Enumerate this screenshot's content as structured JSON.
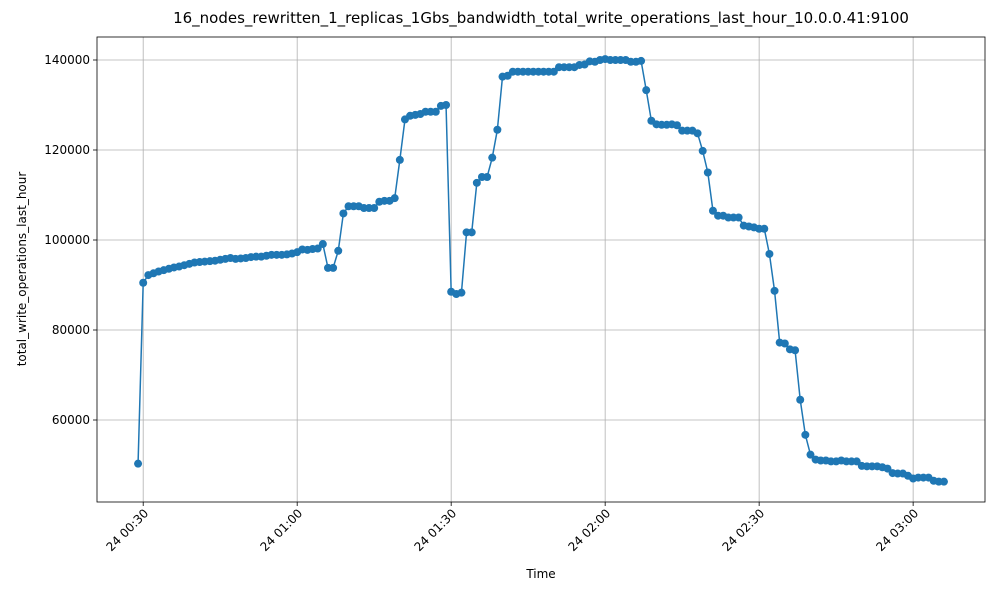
{
  "chart_data": {
    "type": "line",
    "title": "16_nodes_rewritten_1_replicas_1Gbs_bandwidth_total_write_operations_last_hour_10.0.0.41:9100",
    "xlabel": "Time",
    "ylabel": "total_write_operations_last_hour",
    "color": "#1f77b4",
    "grid": true,
    "marker": "o",
    "xlim": [
      "24 00:21",
      "24 03:14"
    ],
    "xticks": [
      "24 00:30",
      "24 01:00",
      "24 01:30",
      "24 02:00",
      "24 02:30",
      "24 03:00"
    ],
    "ylim": [
      41778,
      145111
    ],
    "yticks": [
      60000,
      80000,
      100000,
      120000,
      140000
    ],
    "x": [
      "24 00:29",
      "24 00:30",
      "24 00:31",
      "24 00:32",
      "24 00:33",
      "24 00:34",
      "24 00:35",
      "24 00:36",
      "24 00:37",
      "24 00:38",
      "24 00:39",
      "24 00:40",
      "24 00:41",
      "24 00:42",
      "24 00:43",
      "24 00:44",
      "24 00:45",
      "24 00:46",
      "24 00:47",
      "24 00:48",
      "24 00:49",
      "24 00:50",
      "24 00:51",
      "24 00:52",
      "24 00:53",
      "24 00:54",
      "24 00:55",
      "24 00:56",
      "24 00:57",
      "24 00:58",
      "24 00:59",
      "24 01:00",
      "24 01:01",
      "24 01:02",
      "24 01:03",
      "24 01:04",
      "24 01:05",
      "24 01:06",
      "24 01:07",
      "24 01:08",
      "24 01:09",
      "24 01:10",
      "24 01:11",
      "24 01:12",
      "24 01:13",
      "24 01:14",
      "24 01:15",
      "24 01:16",
      "24 01:17",
      "24 01:18",
      "24 01:19",
      "24 01:20",
      "24 01:21",
      "24 01:22",
      "24 01:23",
      "24 01:24",
      "24 01:25",
      "24 01:26",
      "24 01:27",
      "24 01:28",
      "24 01:29",
      "24 01:30",
      "24 01:31",
      "24 01:32",
      "24 01:33",
      "24 01:34",
      "24 01:35",
      "24 01:36",
      "24 01:37",
      "24 01:38",
      "24 01:39",
      "24 01:40",
      "24 01:41",
      "24 01:42",
      "24 01:43",
      "24 01:44",
      "24 01:45",
      "24 01:46",
      "24 01:47",
      "24 01:48",
      "24 01:49",
      "24 01:50",
      "24 01:51",
      "24 01:52",
      "24 01:53",
      "24 01:54",
      "24 01:55",
      "24 01:56",
      "24 01:57",
      "24 01:58",
      "24 01:59",
      "24 02:00",
      "24 02:01",
      "24 02:02",
      "24 02:03",
      "24 02:04",
      "24 02:05",
      "24 02:06",
      "24 02:07",
      "24 02:08",
      "24 02:09",
      "24 02:10",
      "24 02:11",
      "24 02:12",
      "24 02:13",
      "24 02:14",
      "24 02:15",
      "24 02:16",
      "24 02:17",
      "24 02:18",
      "24 02:19",
      "24 02:20",
      "24 02:21",
      "24 02:22",
      "24 02:23",
      "24 02:24",
      "24 02:25",
      "24 02:26",
      "24 02:27",
      "24 02:28",
      "24 02:29",
      "24 02:30",
      "24 02:31",
      "24 02:32",
      "24 02:33",
      "24 02:34",
      "24 02:35",
      "24 02:36",
      "24 02:37",
      "24 02:38",
      "24 02:39",
      "24 02:40",
      "24 02:41",
      "24 02:42",
      "24 02:43",
      "24 02:44",
      "24 02:45",
      "24 02:46",
      "24 02:47",
      "24 02:48",
      "24 02:49",
      "24 02:50",
      "24 02:51",
      "24 02:52",
      "24 02:53",
      "24 02:54",
      "24 02:55",
      "24 02:56",
      "24 02:57",
      "24 02:58",
      "24 02:59",
      "24 03:00",
      "24 03:01",
      "24 03:02",
      "24 03:03",
      "24 03:04",
      "24 03:05",
      "24 03:06"
    ],
    "values": [
      50300,
      90500,
      92200,
      92600,
      93000,
      93300,
      93600,
      93900,
      94100,
      94400,
      94700,
      95000,
      95100,
      95200,
      95300,
      95400,
      95600,
      95800,
      96000,
      95800,
      95900,
      96000,
      96200,
      96300,
      96300,
      96500,
      96700,
      96700,
      96700,
      96800,
      97000,
      97300,
      97900,
      97800,
      98000,
      98100,
      99100,
      93800,
      93800,
      97600,
      105900,
      107500,
      107500,
      107500,
      107100,
      107100,
      107100,
      108500,
      108700,
      108700,
      109300,
      117800,
      126800,
      127600,
      127800,
      128000,
      128500,
      128500,
      128500,
      129800,
      130000,
      88500,
      88000,
      88300,
      101700,
      101700,
      112700,
      114000,
      114000,
      118300,
      124500,
      136300,
      136500,
      137400,
      137400,
      137400,
      137400,
      137400,
      137400,
      137400,
      137400,
      137400,
      138400,
      138400,
      138400,
      138400,
      138900,
      139000,
      139700,
      139600,
      140000,
      140200,
      140000,
      140000,
      140000,
      140000,
      139600,
      139600,
      139800,
      133300,
      126500,
      125700,
      125600,
      125600,
      125700,
      125500,
      124300,
      124300,
      124300,
      123700,
      119800,
      115000,
      106500,
      105400,
      105400,
      105000,
      105000,
      105000,
      103200,
      103000,
      102800,
      102500,
      102500,
      96900,
      88700,
      77200,
      77000,
      75700,
      75500,
      64500,
      56700,
      52300,
      51200,
      51000,
      51000,
      50800,
      50800,
      51000,
      50800,
      50800,
      50800,
      49800,
      49700,
      49700,
      49700,
      49500,
      49200,
      48200,
      48100,
      48100,
      47600,
      47000,
      47200,
      47200,
      47200,
      46500,
      46300,
      46300
    ]
  }
}
